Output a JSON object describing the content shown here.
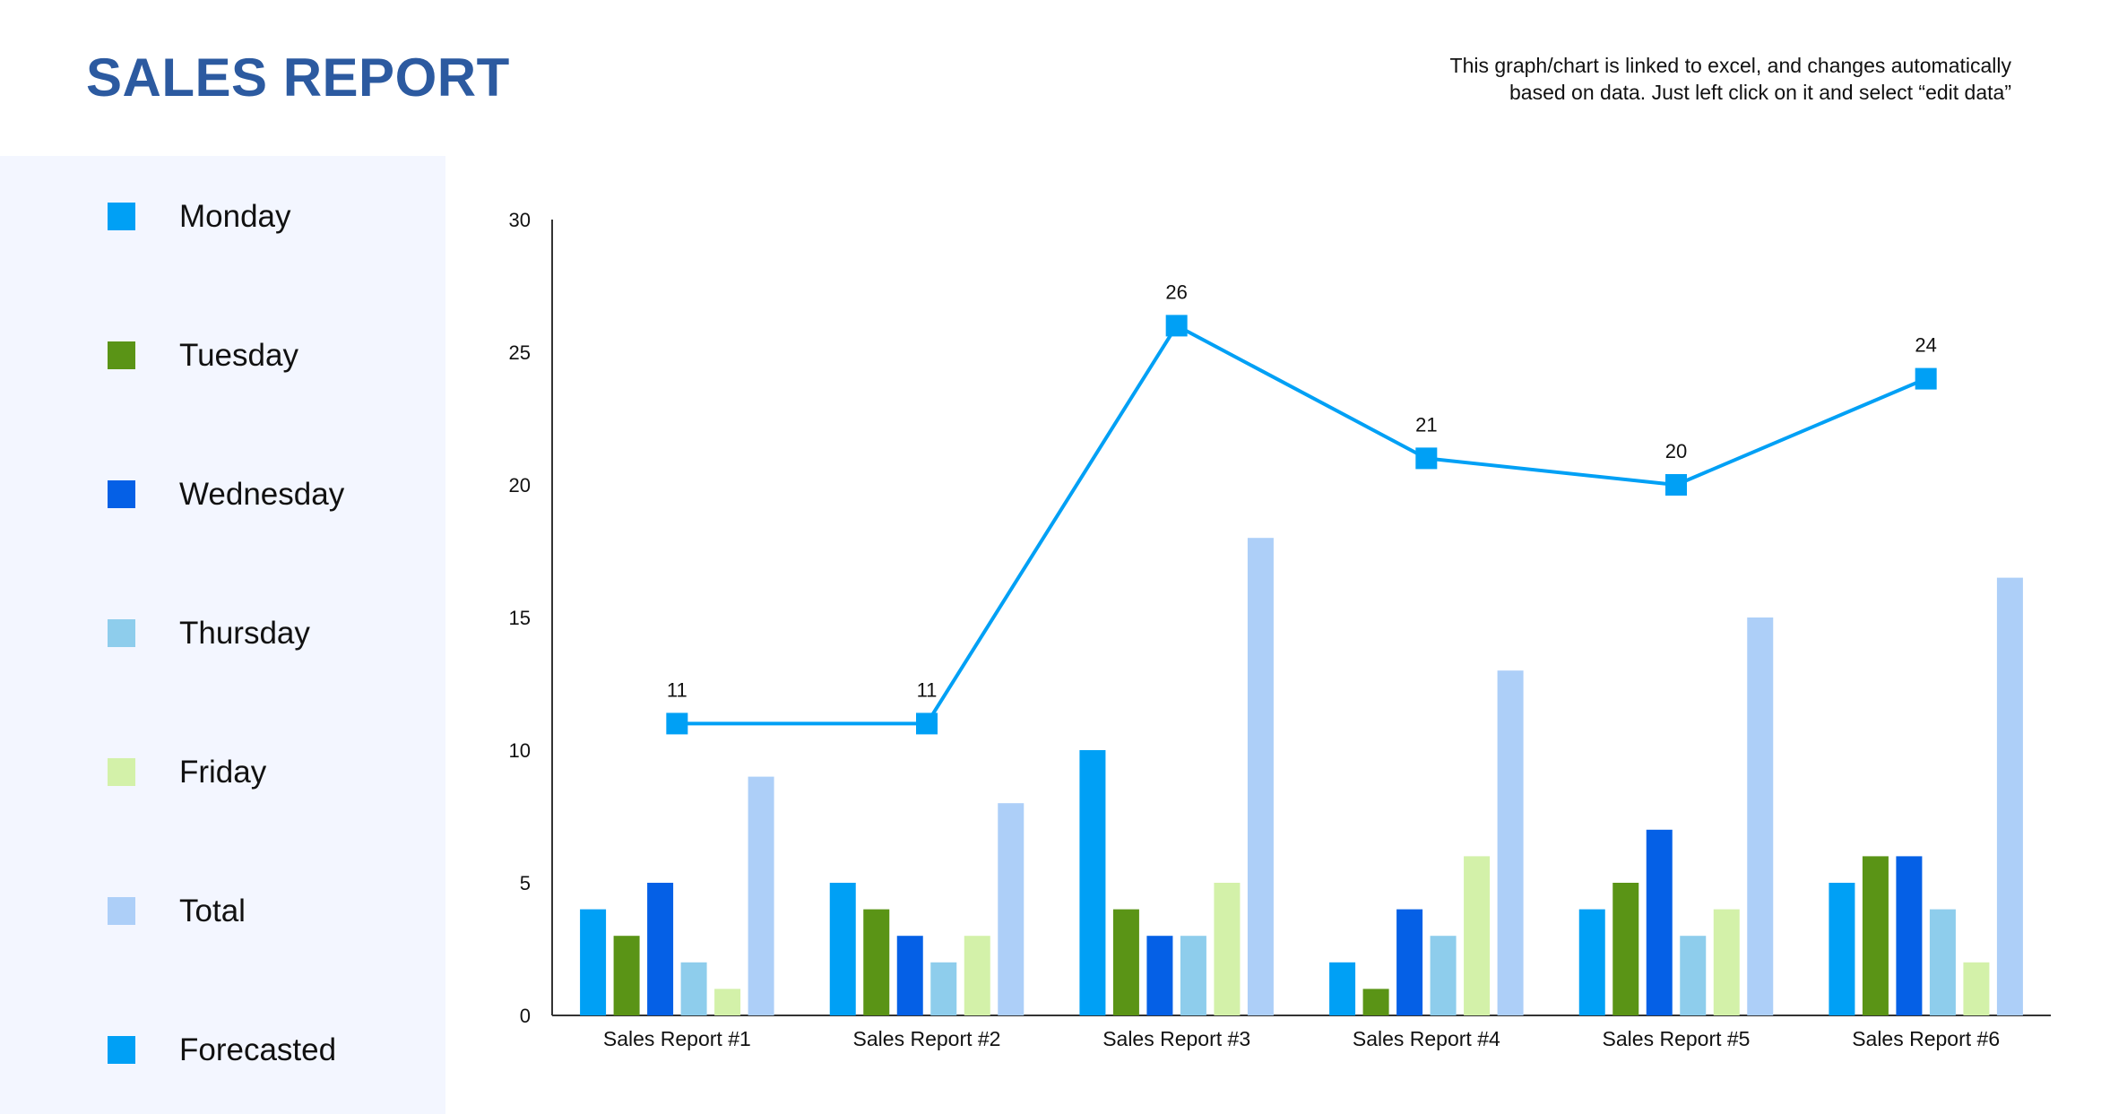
{
  "header": {
    "title": "SALES REPORT",
    "note_line1": "This graph/chart is linked to excel, and changes automatically",
    "note_line2": "based on data. Just left click on it and select “edit data”"
  },
  "legend": {
    "items": [
      {
        "label": "Monday",
        "color": "#00a0f5"
      },
      {
        "label": "Tuesday",
        "color": "#5a9416"
      },
      {
        "label": "Wednesday",
        "color": "#0560e6"
      },
      {
        "label": "Thursday",
        "color": "#8ecdec"
      },
      {
        "label": "Friday",
        "color": "#d3f1a9"
      },
      {
        "label": "Total",
        "color": "#adcff8"
      },
      {
        "label": "Forecasted",
        "color": "#00a0f5"
      }
    ]
  },
  "chart_data": {
    "type": "bar",
    "categories": [
      "Sales Report #1",
      "Sales Report #2",
      "Sales Report #3",
      "Sales Report #4",
      "Sales Report #5",
      "Sales Report #6"
    ],
    "series": [
      {
        "name": "Monday",
        "type": "bar",
        "color": "#00a0f5",
        "values": [
          4,
          5,
          10,
          2,
          4,
          5
        ]
      },
      {
        "name": "Tuesday",
        "type": "bar",
        "color": "#5a9416",
        "values": [
          3,
          4,
          4,
          1,
          5,
          6
        ]
      },
      {
        "name": "Wednesday",
        "type": "bar",
        "color": "#0560e6",
        "values": [
          5,
          3,
          3,
          4,
          7,
          6
        ]
      },
      {
        "name": "Thursday",
        "type": "bar",
        "color": "#8ecdec",
        "values": [
          2,
          2,
          3,
          3,
          3,
          4
        ]
      },
      {
        "name": "Friday",
        "type": "bar",
        "color": "#d3f1a9",
        "values": [
          1,
          3,
          5,
          6,
          4,
          2
        ]
      },
      {
        "name": "Total",
        "type": "bar",
        "color": "#adcff8",
        "values": [
          9,
          8,
          18,
          13,
          15,
          16.5
        ]
      },
      {
        "name": "Forecasted",
        "type": "line",
        "color": "#00a0f5",
        "values": [
          11,
          11,
          26,
          21,
          20,
          24
        ],
        "labels": [
          "11",
          "11",
          "26",
          "21",
          "20",
          "24"
        ]
      }
    ],
    "yticks": [
      "0",
      "5",
      "10",
      "15",
      "20",
      "25",
      "30"
    ],
    "ylim": [
      0,
      30
    ],
    "grid": false,
    "legend_position": "left"
  }
}
